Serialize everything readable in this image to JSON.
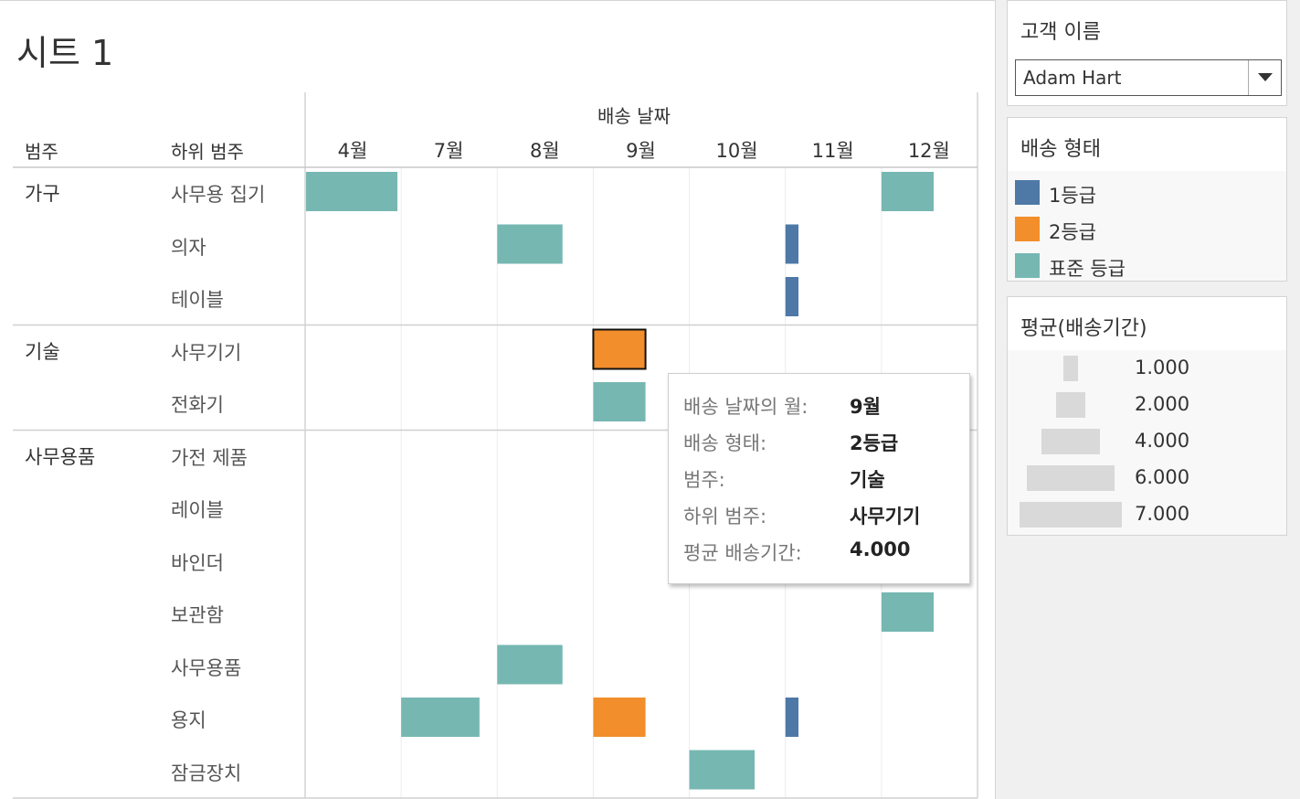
{
  "sheet": {
    "title": "시트 1"
  },
  "headers": {
    "category": "범주",
    "subcategory": "하위 범주",
    "date_field": "배송 날짜"
  },
  "filter": {
    "title": "고객 이름",
    "value": "Adam Hart"
  },
  "color_legend": {
    "title": "배송 형태",
    "items": [
      {
        "label": "1등급",
        "color": "#4e79a7"
      },
      {
        "label": "2등급",
        "color": "#f28e2b"
      },
      {
        "label": "표준 등급",
        "color": "#76b7b2"
      }
    ]
  },
  "size_legend": {
    "title": "평균(배송기간)",
    "items": [
      {
        "label": "1.000",
        "value": 1
      },
      {
        "label": "2.000",
        "value": 2
      },
      {
        "label": "4.000",
        "value": 4
      },
      {
        "label": "6.000",
        "value": 6
      },
      {
        "label": "7.000",
        "value": 7
      }
    ]
  },
  "tooltip": {
    "rows": [
      {
        "key": "배송 날짜의 월:",
        "value": "9월"
      },
      {
        "key": "배송 형태:",
        "value": "2등급"
      },
      {
        "key": "범주:",
        "value": "기술"
      },
      {
        "key": "하위 범주:",
        "value": "사무기기"
      },
      {
        "key": "평균 배송기간:",
        "value": "4.000"
      }
    ]
  },
  "chart_data": {
    "type": "heatmap",
    "x_field": "배송 날짜",
    "months": [
      "4월",
      "7월",
      "8월",
      "9월",
      "10월",
      "11월",
      "12월"
    ],
    "groups": [
      {
        "category": "가구",
        "subcategories": [
          "사무용 집기",
          "의자",
          "테이블"
        ]
      },
      {
        "category": "기술",
        "subcategories": [
          "사무기기",
          "전화기"
        ]
      },
      {
        "category": "사무용품",
        "subcategories": [
          "가전 제품",
          "레이블",
          "바인더",
          "보관함",
          "사무용품",
          "용지",
          "잠금장치"
        ]
      }
    ],
    "marks": [
      {
        "subcategory": "사무용 집기",
        "month": "4월",
        "ship_mode": "표준 등급",
        "avg_days": 7
      },
      {
        "subcategory": "사무용 집기",
        "month": "12월",
        "ship_mode": "표준 등급",
        "avg_days": 4
      },
      {
        "subcategory": "의자",
        "month": "8월",
        "ship_mode": "표준 등급",
        "avg_days": 5
      },
      {
        "subcategory": "의자",
        "month": "11월",
        "ship_mode": "1등급",
        "avg_days": 1
      },
      {
        "subcategory": "테이블",
        "month": "11월",
        "ship_mode": "1등급",
        "avg_days": 1
      },
      {
        "subcategory": "사무기기",
        "month": "9월",
        "ship_mode": "2등급",
        "avg_days": 4,
        "selected": true
      },
      {
        "subcategory": "전화기",
        "month": "9월",
        "ship_mode": "표준 등급",
        "avg_days": 4
      },
      {
        "subcategory": "보관함",
        "month": "12월",
        "ship_mode": "표준 등급",
        "avg_days": 4
      },
      {
        "subcategory": "사무용품",
        "month": "8월",
        "ship_mode": "표준 등급",
        "avg_days": 5
      },
      {
        "subcategory": "용지",
        "month": "7월",
        "ship_mode": "표준 등급",
        "avg_days": 6
      },
      {
        "subcategory": "용지",
        "month": "9월",
        "ship_mode": "2등급",
        "avg_days": 4
      },
      {
        "subcategory": "용지",
        "month": "11월",
        "ship_mode": "1등급",
        "avg_days": 1
      },
      {
        "subcategory": "잠금장치",
        "month": "10월",
        "ship_mode": "표준 등급",
        "avg_days": 5
      }
    ]
  }
}
